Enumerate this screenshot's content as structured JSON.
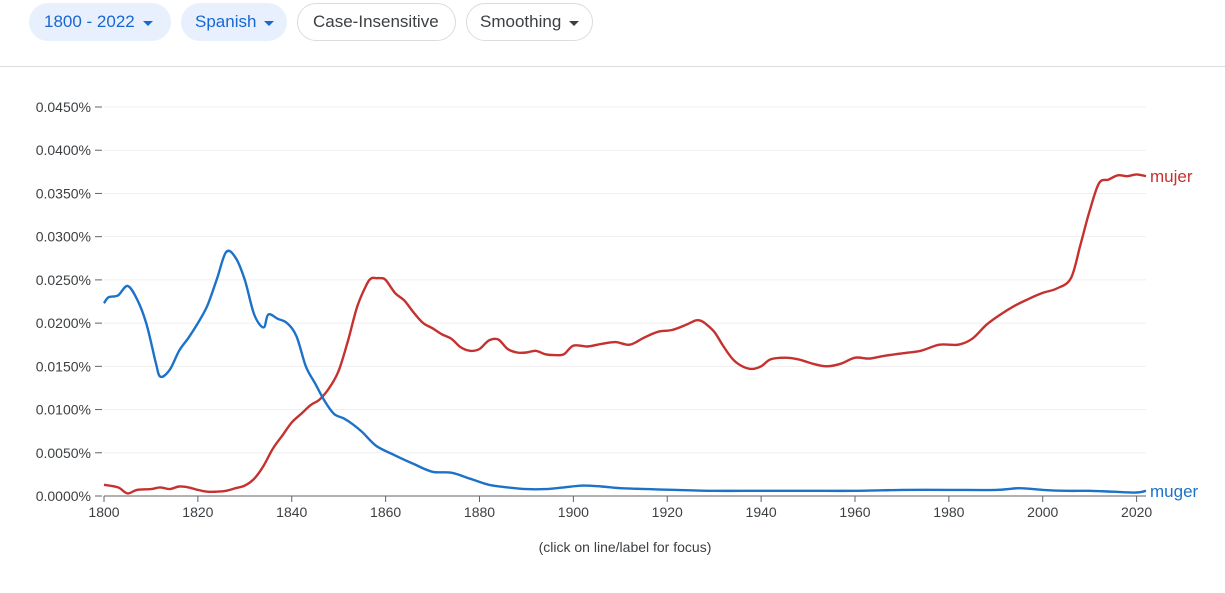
{
  "toolbar": {
    "year_range": "1800 - 2022",
    "language": "Spanish",
    "case": "Case-Insensitive",
    "smoothing": "Smoothing"
  },
  "hint": "(click on line/label for focus)",
  "colors": {
    "mujer": "#c5312f",
    "muger": "#1c72c9",
    "chip_fill": "#e8f0fe",
    "chip_text": "#1967d2"
  },
  "chart_data": {
    "type": "line",
    "ylim": [
      0,
      0.045
    ],
    "xlim": [
      1800,
      2022
    ],
    "y_ticks": [
      "0.0000%",
      "0.0050%",
      "0.0100%",
      "0.0150%",
      "0.0200%",
      "0.0250%",
      "0.0300%",
      "0.0350%",
      "0.0400%",
      "0.0450%"
    ],
    "x_ticks": [
      "1800",
      "1820",
      "1840",
      "1860",
      "1880",
      "1900",
      "1920",
      "1940",
      "1960",
      "1980",
      "2000",
      "2020"
    ],
    "series": [
      {
        "name": "mujer",
        "x": [
          1800,
          1803,
          1805,
          1807,
          1810,
          1812,
          1814,
          1816,
          1818,
          1820,
          1822,
          1824,
          1826,
          1828,
          1830,
          1832,
          1834,
          1836,
          1838,
          1840,
          1842,
          1844,
          1846,
          1848,
          1850,
          1852,
          1854,
          1856,
          1857,
          1858,
          1859,
          1860,
          1862,
          1864,
          1866,
          1868,
          1870,
          1872,
          1874,
          1876,
          1878,
          1880,
          1882,
          1884,
          1886,
          1888,
          1890,
          1892,
          1894,
          1896,
          1898,
          1900,
          1903,
          1906,
          1909,
          1912,
          1915,
          1918,
          1921,
          1924,
          1926,
          1927,
          1928,
          1930,
          1932,
          1934,
          1936,
          1938,
          1940,
          1942,
          1945,
          1948,
          1951,
          1954,
          1957,
          1960,
          1963,
          1966,
          1970,
          1974,
          1978,
          1982,
          1985,
          1988,
          1991,
          1994,
          1997,
          2000,
          2003,
          2006,
          2008,
          2010,
          2012,
          2014,
          2016,
          2018,
          2020,
          2022
        ],
        "values": [
          0.0013,
          0.001,
          0.0003,
          0.0007,
          0.0008,
          0.001,
          0.0008,
          0.0011,
          0.001,
          0.0007,
          0.0005,
          0.0005,
          0.0006,
          0.0009,
          0.0012,
          0.002,
          0.0035,
          0.0055,
          0.007,
          0.0085,
          0.0095,
          0.0105,
          0.0112,
          0.0125,
          0.0145,
          0.018,
          0.022,
          0.0245,
          0.0252,
          0.0252,
          0.0252,
          0.025,
          0.0235,
          0.0226,
          0.0212,
          0.02,
          0.0194,
          0.0187,
          0.0182,
          0.0172,
          0.0168,
          0.017,
          0.018,
          0.0181,
          0.017,
          0.0166,
          0.0166,
          0.0168,
          0.0164,
          0.0163,
          0.0164,
          0.0174,
          0.0173,
          0.0176,
          0.0178,
          0.0175,
          0.0183,
          0.019,
          0.0192,
          0.0198,
          0.0203,
          0.0203,
          0.02,
          0.019,
          0.0173,
          0.0158,
          0.015,
          0.0147,
          0.015,
          0.0158,
          0.016,
          0.0158,
          0.0153,
          0.015,
          0.0153,
          0.016,
          0.0159,
          0.0162,
          0.0165,
          0.0168,
          0.0175,
          0.0175,
          0.0182,
          0.0198,
          0.021,
          0.022,
          0.0228,
          0.0235,
          0.024,
          0.0252,
          0.029,
          0.033,
          0.0362,
          0.0366,
          0.0371,
          0.037,
          0.0372,
          0.037
        ]
      },
      {
        "name": "muger",
        "x": [
          1800,
          1801,
          1803,
          1805,
          1807,
          1809,
          1811,
          1812,
          1814,
          1816,
          1818,
          1820,
          1822,
          1824,
          1826,
          1828,
          1830,
          1832,
          1834,
          1835,
          1837,
          1839,
          1841,
          1843,
          1845,
          1847,
          1849,
          1851,
          1853,
          1855,
          1858,
          1862,
          1866,
          1870,
          1874,
          1878,
          1882,
          1886,
          1890,
          1894,
          1898,
          1902,
          1906,
          1910,
          1916,
          1922,
          1930,
          1940,
          1950,
          1960,
          1970,
          1980,
          1990,
          1995,
          2000,
          2005,
          2010,
          2015,
          2020,
          2022
        ],
        "values": [
          0.0223,
          0.023,
          0.0232,
          0.0243,
          0.0228,
          0.02,
          0.0155,
          0.0138,
          0.0146,
          0.0168,
          0.0183,
          0.02,
          0.022,
          0.025,
          0.0282,
          0.0276,
          0.025,
          0.021,
          0.0195,
          0.021,
          0.0205,
          0.02,
          0.0185,
          0.015,
          0.013,
          0.011,
          0.0095,
          0.009,
          0.0083,
          0.0074,
          0.0058,
          0.0047,
          0.0037,
          0.0028,
          0.0027,
          0.002,
          0.0013,
          0.001,
          0.0008,
          0.0008,
          0.001,
          0.0012,
          0.0011,
          0.0009,
          0.0008,
          0.0007,
          0.0006,
          0.0006,
          0.0006,
          0.0006,
          0.0007,
          0.0007,
          0.0007,
          0.0009,
          0.0007,
          0.0006,
          0.0006,
          0.0005,
          0.0004,
          0.0006
        ]
      }
    ]
  }
}
